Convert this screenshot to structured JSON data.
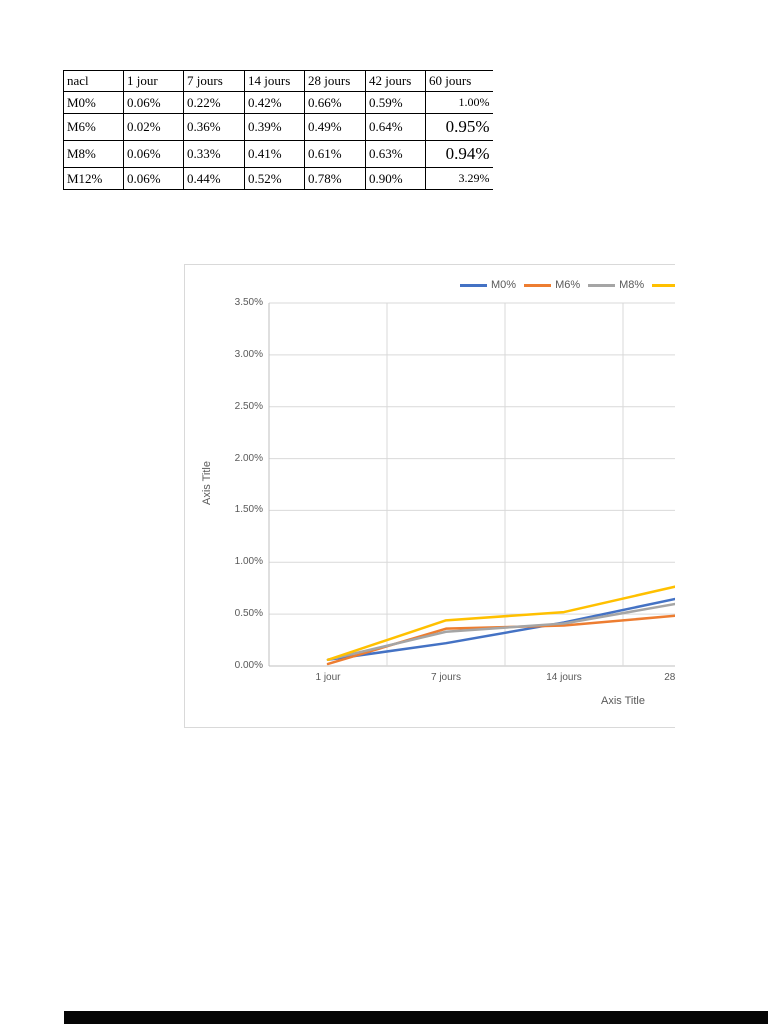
{
  "table": {
    "headers": [
      "nacl",
      "1 jour",
      "7 jours",
      "14 jours",
      "28 jours",
      "42 jours",
      "60 jours"
    ],
    "rows": [
      {
        "label": "M0%",
        "values": [
          "0.06%",
          "0.22%",
          "0.42%",
          "0.66%",
          "0.59%",
          "1.00%"
        ]
      },
      {
        "label": "M6%",
        "values": [
          "0.02%",
          "0.36%",
          "0.39%",
          "0.49%",
          "0.64%",
          "0.95%"
        ]
      },
      {
        "label": "M8%",
        "values": [
          "0.06%",
          "0.33%",
          "0.41%",
          "0.61%",
          "0.63%",
          "0.94%"
        ]
      },
      {
        "label": "M12%",
        "values": [
          "0.06%",
          "0.44%",
          "0.52%",
          "0.78%",
          "0.90%",
          "3.29%"
        ]
      }
    ]
  },
  "chart_data": {
    "type": "line",
    "title": "",
    "xlabel": "Axis Title",
    "ylabel": "Axis Title",
    "categories": [
      "1 jour",
      "7 jours",
      "14 jours",
      "28 jours",
      "42 jours",
      "60 jours"
    ],
    "y_ticks": [
      "3.50%",
      "3.00%",
      "2.50%",
      "2.00%",
      "1.50%",
      "1.00%",
      "0.50%",
      "0.00%"
    ],
    "ylim": [
      0,
      3.5
    ],
    "grid": true,
    "legend_position": "top",
    "clipped_right": true,
    "series": [
      {
        "name": "M0%",
        "color": "#4472C4",
        "values": [
          0.06,
          0.22,
          0.42,
          0.66,
          0.59,
          1.0
        ]
      },
      {
        "name": "M6%",
        "color": "#ED7D31",
        "values": [
          0.02,
          0.36,
          0.39,
          0.49,
          0.64,
          0.95
        ]
      },
      {
        "name": "M8%",
        "color": "#A5A5A5",
        "values": [
          0.06,
          0.33,
          0.41,
          0.61,
          0.63,
          0.94
        ]
      },
      {
        "name": "M12%",
        "color": "#FFC000",
        "values": [
          0.06,
          0.44,
          0.52,
          0.78,
          0.9,
          3.29
        ]
      }
    ]
  }
}
